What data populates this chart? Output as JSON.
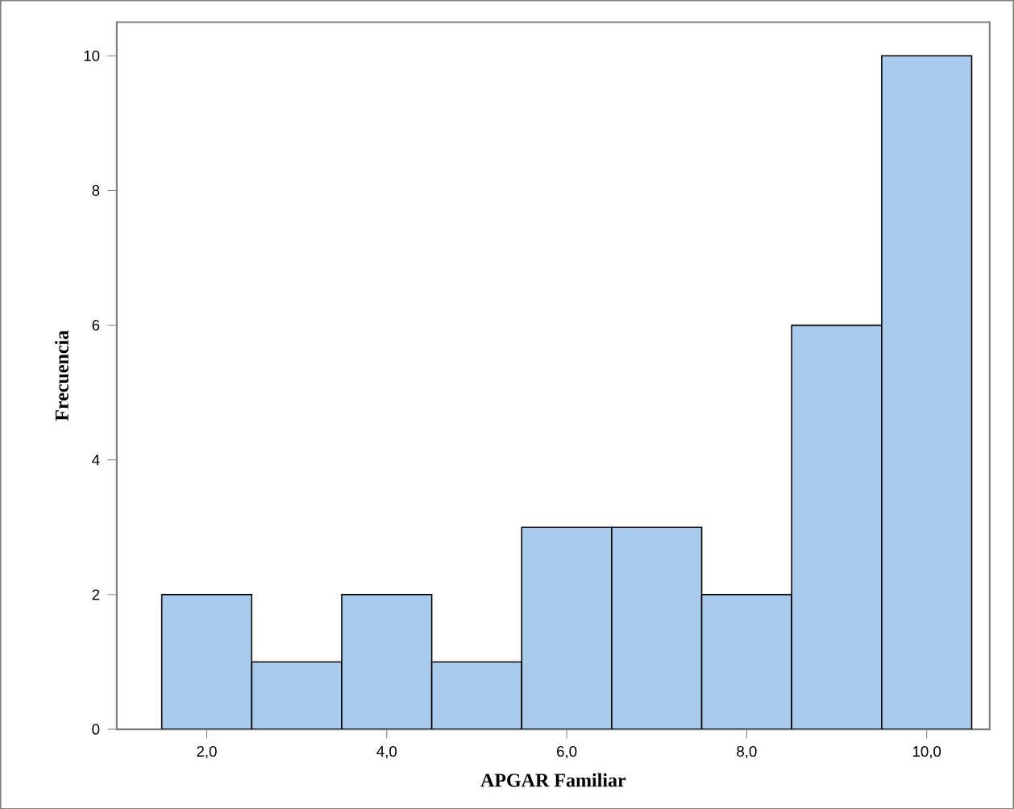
{
  "chart_data": {
    "type": "histogram",
    "xlabel": "APGAR Familiar",
    "ylabel": "Frecuencia",
    "bins": [
      1.5,
      2.5,
      3.5,
      4.5,
      5.5,
      6.5,
      7.5,
      8.5,
      9.5,
      10.5
    ],
    "values": [
      2,
      1,
      2,
      1,
      3,
      3,
      2,
      6,
      10
    ],
    "color": "#a9cbeb",
    "xlim": [
      1.0,
      10.7
    ],
    "ylim": [
      0,
      10.5
    ],
    "xticks": [
      {
        "value": 2,
        "label": "2,0"
      },
      {
        "value": 4,
        "label": "4,0"
      },
      {
        "value": 6,
        "label": "6,0"
      },
      {
        "value": 8,
        "label": "8,0"
      },
      {
        "value": 10,
        "label": "10,0"
      }
    ],
    "yticks": [
      0,
      2,
      4,
      6,
      8,
      10
    ],
    "grid": false
  }
}
